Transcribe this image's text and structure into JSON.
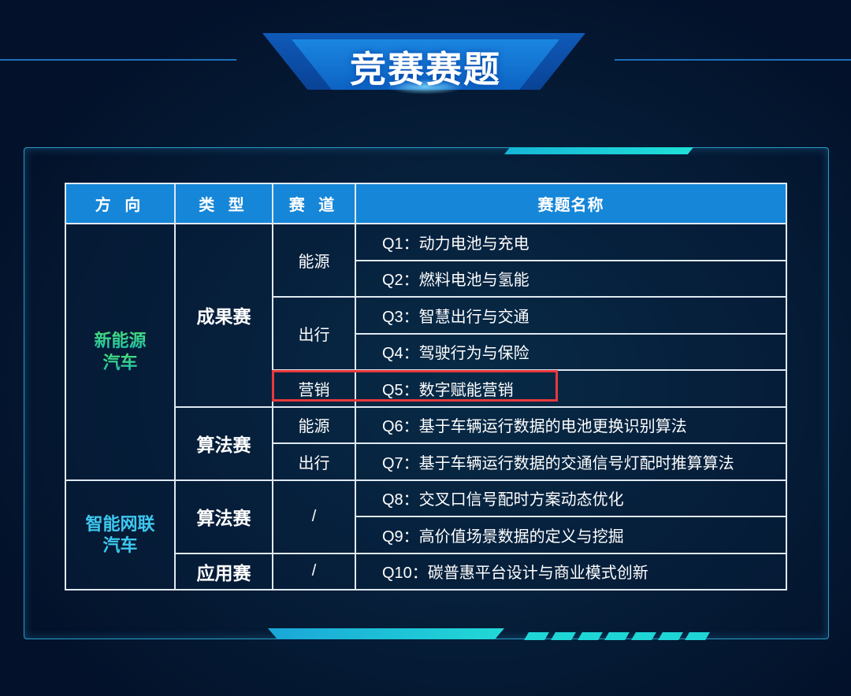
{
  "title": "竞赛赛题",
  "table": {
    "headers": [
      "方 向",
      "类 型",
      "赛 道",
      "赛题名称"
    ],
    "directions": [
      "新能源\n汽车",
      "智能网联\n汽车"
    ],
    "types": [
      "成果赛",
      "算法赛",
      "算法赛",
      "应用赛"
    ],
    "tracks": [
      "能源",
      "出行",
      "营销",
      "能源",
      "出行",
      "/",
      "/"
    ],
    "questions": [
      "Q1：动力电池与充电",
      "Q2：燃料电池与氢能",
      "Q3：智慧出行与交通",
      "Q4：驾驶行为与保险",
      "Q5：数字赋能营销",
      "Q6：基于车辆运行数据的电池更换识别算法",
      "Q7：基于车辆运行数据的交通信号灯配时推算算法",
      "Q8：交叉口信号配时方案动态优化",
      "Q9：高价值场景数据的定义与挖掘",
      "Q10：碳普惠平台设计与商业模式创新"
    ]
  },
  "colors": {
    "header": "#1686d8",
    "highlight": "#e8393c",
    "direction1": "#2fe08a",
    "direction2": "#3ec8f0"
  }
}
